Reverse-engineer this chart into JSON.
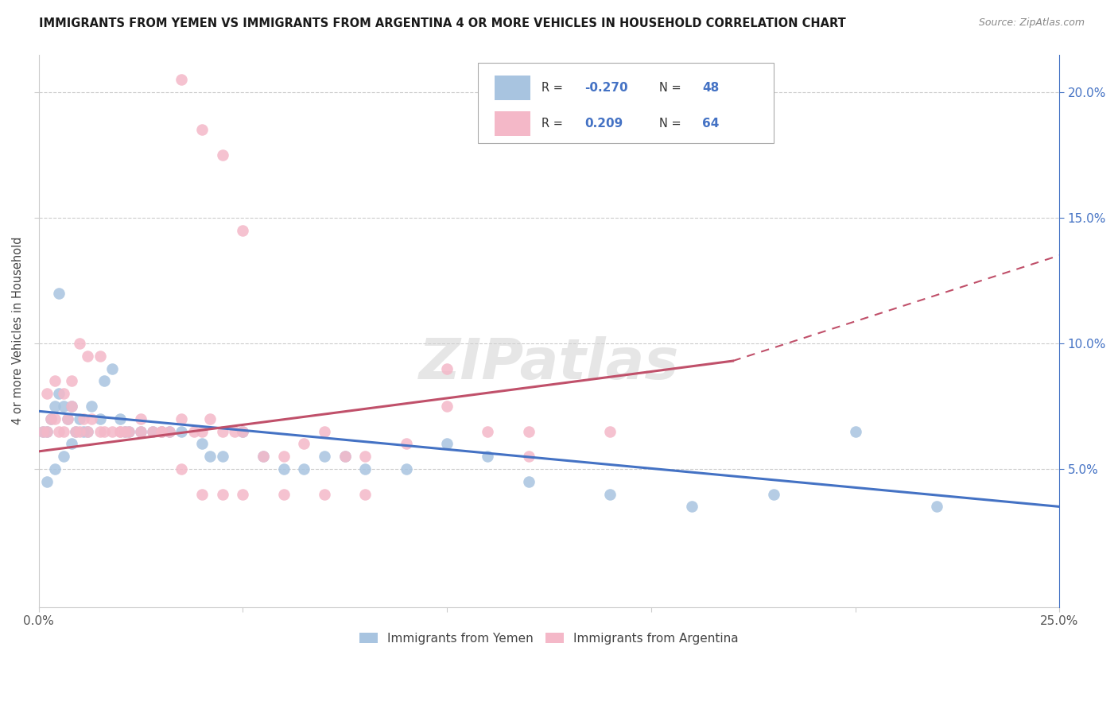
{
  "title": "IMMIGRANTS FROM YEMEN VS IMMIGRANTS FROM ARGENTINA 4 OR MORE VEHICLES IN HOUSEHOLD CORRELATION CHART",
  "source": "Source: ZipAtlas.com",
  "ylabel": "4 or more Vehicles in Household",
  "color1": "#a8c4e0",
  "color2": "#f4b8c8",
  "line_color1": "#4472c4",
  "line_color2": "#c0506a",
  "legend_label1": "Immigrants from Yemen",
  "legend_label2": "Immigrants from Argentina",
  "r1": "-0.270",
  "n1": "48",
  "r2": "0.209",
  "n2": "64",
  "xlim": [
    0.0,
    0.25
  ],
  "ylim": [
    -0.005,
    0.215
  ],
  "yemen_x": [
    0.001,
    0.002,
    0.003,
    0.004,
    0.005,
    0.006,
    0.007,
    0.008,
    0.009,
    0.01,
    0.011,
    0.012,
    0.013,
    0.015,
    0.016,
    0.018,
    0.02,
    0.021,
    0.022,
    0.025,
    0.028,
    0.03,
    0.032,
    0.035,
    0.04,
    0.042,
    0.045,
    0.05,
    0.055,
    0.06,
    0.065,
    0.07,
    0.075,
    0.08,
    0.09,
    0.1,
    0.11,
    0.12,
    0.14,
    0.16,
    0.002,
    0.004,
    0.006,
    0.008,
    0.18,
    0.2,
    0.22,
    0.005
  ],
  "yemen_y": [
    0.065,
    0.065,
    0.07,
    0.075,
    0.08,
    0.075,
    0.07,
    0.075,
    0.065,
    0.07,
    0.065,
    0.065,
    0.075,
    0.07,
    0.085,
    0.09,
    0.07,
    0.065,
    0.065,
    0.065,
    0.065,
    0.065,
    0.065,
    0.065,
    0.06,
    0.055,
    0.055,
    0.065,
    0.055,
    0.05,
    0.05,
    0.055,
    0.055,
    0.05,
    0.05,
    0.06,
    0.055,
    0.045,
    0.04,
    0.035,
    0.045,
    0.05,
    0.055,
    0.06,
    0.04,
    0.065,
    0.035,
    0.12
  ],
  "argentina_x": [
    0.001,
    0.002,
    0.003,
    0.004,
    0.005,
    0.006,
    0.007,
    0.008,
    0.009,
    0.01,
    0.011,
    0.012,
    0.013,
    0.015,
    0.016,
    0.018,
    0.02,
    0.021,
    0.022,
    0.025,
    0.028,
    0.03,
    0.032,
    0.035,
    0.038,
    0.04,
    0.042,
    0.045,
    0.048,
    0.05,
    0.055,
    0.06,
    0.065,
    0.07,
    0.075,
    0.08,
    0.09,
    0.1,
    0.11,
    0.12,
    0.002,
    0.004,
    0.006,
    0.008,
    0.01,
    0.012,
    0.015,
    0.02,
    0.025,
    0.03,
    0.035,
    0.04,
    0.045,
    0.05,
    0.06,
    0.07,
    0.08,
    0.1,
    0.12,
    0.14,
    0.035,
    0.04,
    0.045,
    0.05
  ],
  "argentina_y": [
    0.065,
    0.065,
    0.07,
    0.07,
    0.065,
    0.065,
    0.07,
    0.075,
    0.065,
    0.065,
    0.07,
    0.065,
    0.07,
    0.065,
    0.065,
    0.065,
    0.065,
    0.065,
    0.065,
    0.07,
    0.065,
    0.065,
    0.065,
    0.07,
    0.065,
    0.065,
    0.07,
    0.065,
    0.065,
    0.065,
    0.055,
    0.055,
    0.06,
    0.065,
    0.055,
    0.055,
    0.06,
    0.09,
    0.065,
    0.065,
    0.08,
    0.085,
    0.08,
    0.085,
    0.1,
    0.095,
    0.095,
    0.065,
    0.065,
    0.065,
    0.05,
    0.04,
    0.04,
    0.04,
    0.04,
    0.04,
    0.04,
    0.075,
    0.055,
    0.065,
    0.205,
    0.185,
    0.175,
    0.145
  ],
  "line1_x0": 0.0,
  "line1_y0": 0.073,
  "line1_x1": 0.25,
  "line1_y1": 0.035,
  "line2_solid_x0": 0.0,
  "line2_solid_y0": 0.057,
  "line2_solid_x1": 0.17,
  "line2_solid_y1": 0.093,
  "line2_dash_x0": 0.17,
  "line2_dash_y0": 0.093,
  "line2_dash_x1": 0.25,
  "line2_dash_y1": 0.135
}
